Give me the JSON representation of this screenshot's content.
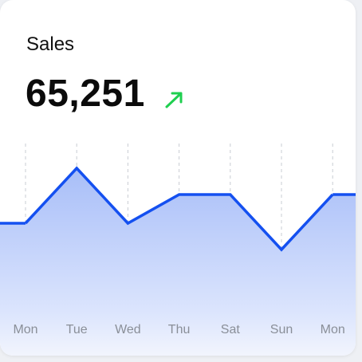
{
  "chart_data": {
    "type": "line",
    "title": "Sales",
    "headline": "65,251",
    "categories": [
      "Mon",
      "Tue",
      "Wed",
      "Thu",
      "Sat",
      "Sun",
      "Mon"
    ],
    "values": [
      105,
      174,
      105,
      141,
      141,
      72,
      141
    ],
    "color": "#1450f0",
    "ylim": [
      0,
      205
    ],
    "grid": true
  }
}
